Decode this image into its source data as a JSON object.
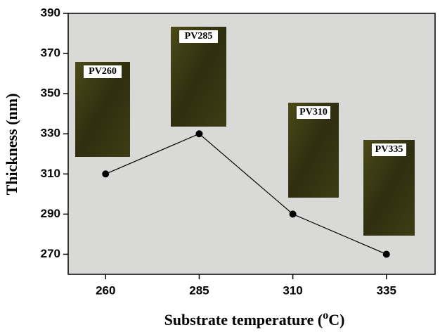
{
  "chart_data": {
    "type": "line",
    "x": [
      260,
      285,
      310,
      335
    ],
    "series": [
      {
        "name": null,
        "color": "#000000",
        "values": [
          310,
          330,
          290,
          270
        ]
      }
    ],
    "xlim": [
      250,
      348
    ],
    "xticks": [
      260,
      285,
      310,
      335
    ],
    "ylim": [
      260,
      390
    ],
    "yticks": [
      270,
      290,
      310,
      330,
      350,
      370,
      390
    ],
    "xlabel": {
      "text": "Substrate temperature (",
      "superscript": "o",
      "suffix": "C)"
    },
    "ylabel": "Thickness (nm)",
    "annotations": [
      "PV260",
      "PV285",
      "PV310",
      "PV335"
    ]
  }
}
